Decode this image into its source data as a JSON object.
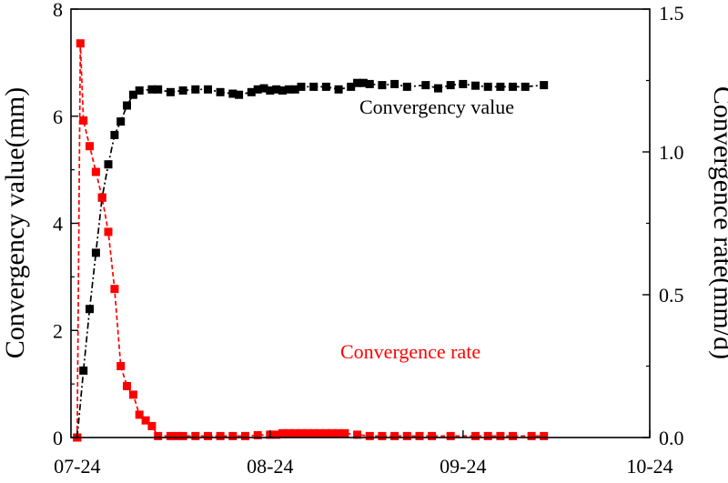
{
  "chart_data": {
    "type": "line",
    "x_ticks": [
      {
        "day": 0,
        "label": "07-24"
      },
      {
        "day": 31,
        "label": "08-24"
      },
      {
        "day": 62,
        "label": "09-24"
      },
      {
        "day": 92,
        "label": "10-24"
      }
    ],
    "xlim": [
      -1,
      92
    ],
    "y_left": {
      "label": "Convergency value(mm)",
      "lim": [
        0,
        8
      ],
      "ticks": [
        0,
        2,
        4,
        6,
        8
      ]
    },
    "y_right": {
      "label": "Convergence rate(mm/d)",
      "lim": [
        0,
        1.5
      ],
      "ticks": [
        0.0,
        0.5,
        1.0,
        1.5
      ],
      "tick_labels": [
        "0.0",
        "0.5",
        "1.0",
        "1.5"
      ]
    },
    "annotations": [
      {
        "text": "Convergency value",
        "color": "#000000"
      },
      {
        "text": "Convergence rate",
        "color": "#ff0000"
      }
    ],
    "series": [
      {
        "name": "Convergency value",
        "axis": "left",
        "color": "#000000",
        "style": "dash-dot",
        "marker": "square",
        "points": [
          [
            0,
            0
          ],
          [
            1,
            1.25
          ],
          [
            2,
            2.4
          ],
          [
            3,
            3.45
          ],
          [
            4,
            4.48
          ],
          [
            5,
            5.1
          ],
          [
            6,
            5.65
          ],
          [
            7,
            5.9
          ],
          [
            8,
            6.2
          ],
          [
            9,
            6.4
          ],
          [
            10,
            6.48
          ],
          [
            12,
            6.5
          ],
          [
            13,
            6.5
          ],
          [
            15,
            6.45
          ],
          [
            17,
            6.48
          ],
          [
            19,
            6.5
          ],
          [
            21,
            6.5
          ],
          [
            23,
            6.45
          ],
          [
            25,
            6.42
          ],
          [
            26,
            6.4
          ],
          [
            28,
            6.45
          ],
          [
            29,
            6.5
          ],
          [
            30,
            6.52
          ],
          [
            31,
            6.48
          ],
          [
            32,
            6.5
          ],
          [
            33,
            6.48
          ],
          [
            34,
            6.5
          ],
          [
            35,
            6.5
          ],
          [
            36,
            6.55
          ],
          [
            38,
            6.55
          ],
          [
            40,
            6.55
          ],
          [
            42,
            6.5
          ],
          [
            44,
            6.55
          ],
          [
            45,
            6.62
          ],
          [
            46,
            6.62
          ],
          [
            47,
            6.6
          ],
          [
            49,
            6.58
          ],
          [
            51,
            6.6
          ],
          [
            53,
            6.55
          ],
          [
            56,
            6.58
          ],
          [
            58,
            6.52
          ],
          [
            60,
            6.58
          ],
          [
            62,
            6.6
          ],
          [
            64,
            6.57
          ],
          [
            66,
            6.55
          ],
          [
            68,
            6.55
          ],
          [
            70,
            6.55
          ],
          [
            72,
            6.55
          ],
          [
            75,
            6.58
          ]
        ]
      },
      {
        "name": "Convergence rate",
        "axis": "right",
        "color": "#ff0000",
        "style": "dashed",
        "marker": "square",
        "points": [
          [
            0,
            0
          ],
          [
            0.5,
            1.38
          ],
          [
            1,
            1.11
          ],
          [
            2,
            1.02
          ],
          [
            3,
            0.93
          ],
          [
            4,
            0.84
          ],
          [
            5,
            0.72
          ],
          [
            6,
            0.52
          ],
          [
            7,
            0.25
          ],
          [
            8,
            0.18
          ],
          [
            9,
            0.15
          ],
          [
            10,
            0.08
          ],
          [
            11,
            0.06
          ],
          [
            12,
            0.04
          ],
          [
            13,
            0.005
          ],
          [
            15,
            0.005
          ],
          [
            16,
            0.005
          ],
          [
            17,
            0.005
          ],
          [
            19,
            0.005
          ],
          [
            21,
            0.005
          ],
          [
            23,
            0.005
          ],
          [
            25,
            0.005
          ],
          [
            27,
            0.005
          ],
          [
            29,
            0.008
          ],
          [
            31,
            0.01
          ],
          [
            32,
            0.01
          ],
          [
            33,
            0.015
          ],
          [
            34,
            0.015
          ],
          [
            35,
            0.015
          ],
          [
            36,
            0.015
          ],
          [
            37,
            0.015
          ],
          [
            38,
            0.015
          ],
          [
            39,
            0.015
          ],
          [
            40,
            0.015
          ],
          [
            41,
            0.015
          ],
          [
            42,
            0.015
          ],
          [
            43,
            0.015
          ],
          [
            45,
            0.01
          ],
          [
            47,
            0.005
          ],
          [
            49,
            0.005
          ],
          [
            51,
            0.005
          ],
          [
            53,
            0.005
          ],
          [
            55,
            0.005
          ],
          [
            57,
            0.005
          ],
          [
            60,
            0.005
          ],
          [
            64,
            0.005
          ],
          [
            66,
            0.005
          ],
          [
            68,
            0.005
          ],
          [
            70,
            0.005
          ],
          [
            73,
            0.005
          ],
          [
            75,
            0.005
          ]
        ]
      }
    ]
  }
}
